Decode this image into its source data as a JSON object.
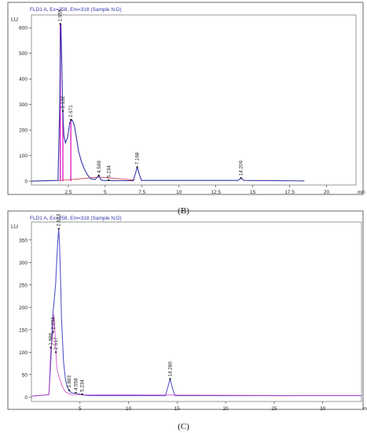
{
  "chart_data": [
    {
      "type": "line",
      "title": "FLD1 A, Ex=258, Em=318 (Sample N.D)",
      "ylabel": "LU",
      "xlabel": "min",
      "xlim": [
        0,
        22
      ],
      "ylim": [
        -15,
        650
      ],
      "x_ticks": [
        2.5,
        5,
        7.5,
        10,
        12.5,
        15,
        17.5,
        20
      ],
      "x_tick_labels": [
        "2.5",
        "5",
        "7.5",
        "10",
        "12.5",
        "15",
        "17.5",
        "20"
      ],
      "y_ticks": [
        0,
        100,
        200,
        300,
        400,
        500,
        600
      ],
      "y_tick_labels": [
        "0",
        "100",
        "200",
        "300",
        "400",
        "500",
        "600"
      ],
      "trace_color": "#3333aa",
      "marker_color": "#dd22cc",
      "baseline_color": "#cc3344",
      "series": [
        {
          "x": [
            0,
            1.8,
            1.92,
            1.97,
            2.0,
            2.06,
            2.12,
            2.2,
            2.3,
            2.45,
            2.6,
            2.75,
            2.9,
            3.05,
            3.2,
            3.4,
            3.6,
            3.8,
            4.0,
            4.3,
            4.5,
            4.56,
            4.62,
            4.7,
            4.85,
            5.1,
            5.234,
            5.4,
            6.9,
            7.05,
            7.168,
            7.3,
            7.45,
            14.0,
            14.206,
            14.4,
            18.5
          ],
          "y": [
            0,
            3,
            300,
            590,
            615,
            450,
            275,
            180,
            150,
            170,
            230,
            240,
            220,
            170,
            115,
            75,
            45,
            25,
            10,
            6,
            18,
            22,
            16,
            6,
            3,
            2,
            4,
            2,
            2,
            30,
            55,
            30,
            3,
            3,
            12,
            3,
            1
          ]
        }
      ],
      "peaks": [
        {
          "label": "1.955",
          "rt": 1.955,
          "height": 615
        },
        {
          "label": "2.132",
          "rt": 2.132,
          "height": 275
        },
        {
          "label": "2.671",
          "rt": 2.671,
          "height": 240
        },
        {
          "label": "4.569",
          "rt": 4.569,
          "height": 22
        },
        {
          "label": "5.234",
          "rt": 5.234,
          "height": 4
        },
        {
          "label": "7.168",
          "rt": 7.168,
          "height": 55
        },
        {
          "label": "14.206",
          "rt": 14.206,
          "height": 12
        }
      ],
      "caption": "(B)"
    },
    {
      "type": "line",
      "title": "FLD1 A, Ex=258, Em=318 (Sample N.D)",
      "ylabel": "LU",
      "xlabel": "min",
      "xlim": [
        0,
        34
      ],
      "ylim": [
        -10,
        390
      ],
      "x_ticks": [
        5,
        10,
        15,
        20,
        25,
        30
      ],
      "x_tick_labels": [
        "5",
        "10",
        "15",
        "20",
        "25",
        "30"
      ],
      "y_ticks": [
        0,
        50,
        100,
        150,
        200,
        250,
        300,
        350
      ],
      "y_tick_labels": [
        "0",
        "50",
        "100",
        "150",
        "200",
        "250",
        "300",
        "350"
      ],
      "trace_color": "#5555cc",
      "marker_color": "#cc44cc",
      "series": [
        {
          "x": [
            0,
            1.8,
            2.0,
            2.2,
            2.35,
            2.5,
            2.6,
            2.7,
            2.813,
            2.9,
            3.0,
            3.1,
            3.3,
            3.5,
            3.7,
            3.883,
            4.1,
            4.4,
            4.558,
            4.8,
            5.234,
            5.5,
            6.0,
            13.8,
            14.0,
            14.286,
            14.55,
            14.8,
            34
          ],
          "y": [
            2,
            5,
            80,
            185,
            215,
            255,
            300,
            345,
            375,
            340,
            260,
            175,
            80,
            40,
            22,
            15,
            10,
            8,
            9,
            7,
            6,
            4,
            3,
            3,
            18,
            40,
            18,
            3,
            3
          ]
        },
        {
          "x": [
            0,
            1.8,
            1.988,
            2.1,
            2.234,
            2.3,
            2.4,
            2.517,
            2.6,
            2.7,
            2.85,
            3.0,
            3.2,
            3.5,
            3.8,
            4.2,
            34
          ],
          "y": [
            2,
            5,
            110,
            120,
            145,
            185,
            160,
            100,
            70,
            55,
            45,
            35,
            22,
            12,
            8,
            5,
            3
          ]
        }
      ],
      "peaks": [
        {
          "label": "1.988",
          "rt": 1.988,
          "height": 110
        },
        {
          "label": "2.234",
          "rt": 2.234,
          "height": 145
        },
        {
          "label": "2.517",
          "rt": 2.517,
          "height": 100
        },
        {
          "label": "2.813",
          "rt": 2.813,
          "height": 375
        },
        {
          "label": "3.883",
          "rt": 3.883,
          "height": 15
        },
        {
          "label": "4.558",
          "rt": 4.558,
          "height": 9
        },
        {
          "label": "5.234",
          "rt": 5.234,
          "height": 6
        },
        {
          "label": "14.286",
          "rt": 14.286,
          "height": 40
        }
      ],
      "caption": "(C)"
    }
  ]
}
